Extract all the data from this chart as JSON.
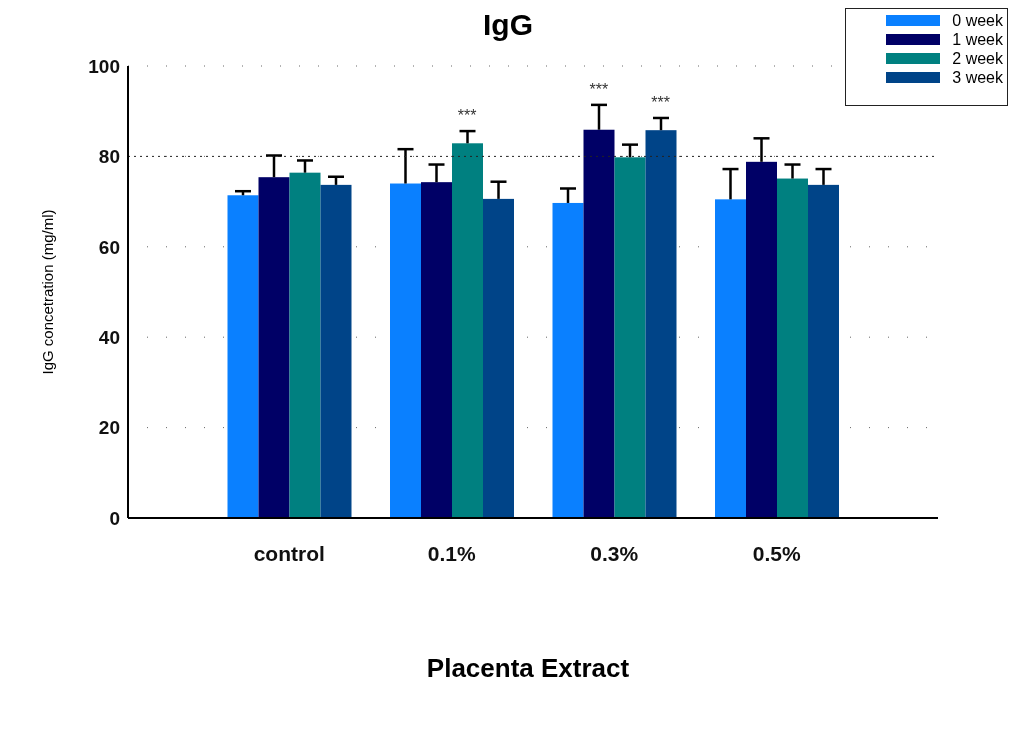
{
  "chart_data": {
    "type": "bar",
    "title": "IgG",
    "xlabel": "Placenta Extract",
    "ylabel": "IgG concetration (mg/ml)",
    "categories": [
      "control",
      "0.1%",
      "0.3%",
      "0.5%"
    ],
    "series": [
      {
        "name": "0 week",
        "color": "#0a80ff",
        "values": [
          71.4,
          74.0,
          69.7,
          70.5
        ],
        "errors": [
          [
            71.4,
            72.3
          ],
          [
            74.0,
            81.6
          ],
          [
            69.7,
            72.9
          ],
          [
            70.5,
            77.2
          ]
        ]
      },
      {
        "name": "1 week",
        "color": "#000066",
        "values": [
          75.4,
          74.3,
          85.9,
          78.8
        ],
        "errors": [
          [
            75.4,
            80.2
          ],
          [
            74.3,
            78.2
          ],
          [
            85.9,
            91.4
          ],
          [
            78.8,
            84.0
          ]
        ]
      },
      {
        "name": "2 week",
        "color": "#008080",
        "values": [
          76.4,
          82.9,
          79.8,
          75.1
        ],
        "errors": [
          [
            76.4,
            79.1
          ],
          [
            82.9,
            85.6
          ],
          [
            79.8,
            82.6
          ],
          [
            75.1,
            78.2
          ]
        ]
      },
      {
        "name": "3 week",
        "color": "#004488",
        "values": [
          73.7,
          70.6,
          85.8,
          73.7
        ],
        "errors": [
          [
            73.7,
            75.5
          ],
          [
            70.6,
            74.4
          ],
          [
            85.8,
            88.5
          ],
          [
            73.7,
            77.2
          ]
        ]
      }
    ],
    "ylim": [
      0,
      100
    ],
    "yticks": [
      0,
      20,
      40,
      60,
      80,
      100
    ],
    "grid": "y",
    "legend": "top right",
    "ref_lines": [
      {
        "axis": "y",
        "value": 80,
        "line_style": "dotted"
      }
    ],
    "annotations": [
      {
        "text": "***",
        "x": "0.1%",
        "y": 82.9
      },
      {
        "text": "***",
        "x": "0.3%",
        "y": 85.9
      },
      {
        "text": "***",
        "x": "0.3%",
        "y": 85.8
      }
    ]
  }
}
